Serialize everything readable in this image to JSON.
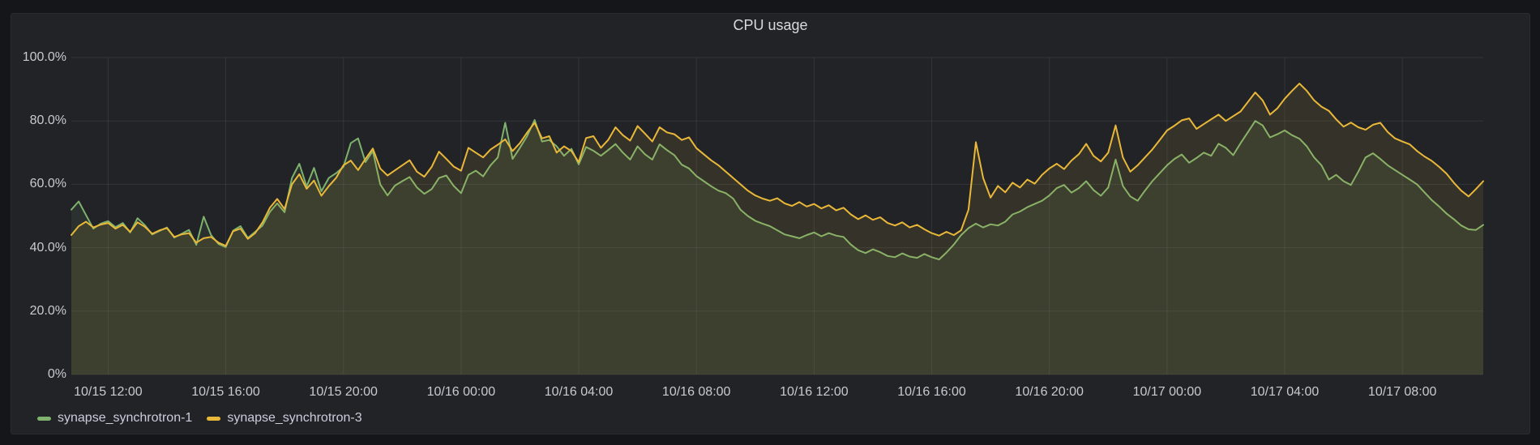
{
  "panel": {
    "title": "CPU usage"
  },
  "colors": {
    "series_green": "#7EB26D",
    "series_yellow": "#EAB839",
    "grid": "rgba(204,204,220,0.10)",
    "tick_text": "#C9CAD1",
    "title_text": "#D8D9DA"
  },
  "chart_data": {
    "type": "area",
    "title": "CPU usage",
    "unit": "percent",
    "grid": true,
    "legend_position": "bottom-left",
    "ylim": [
      0,
      100
    ],
    "total_hours": 48,
    "x_start_label": "10/15 10:45",
    "sample_interval_minutes": 15,
    "y_ticks": [
      {
        "value": 100,
        "label": "100.0%"
      },
      {
        "value": 80,
        "label": "80.0%"
      },
      {
        "value": 60,
        "label": "60.0%"
      },
      {
        "value": 40,
        "label": "40.0%"
      },
      {
        "value": 20,
        "label": "20.0%"
      },
      {
        "value": 0,
        "label": "0%"
      }
    ],
    "x_ticks": [
      {
        "label": "10/15 12:00",
        "t": 1.25
      },
      {
        "label": "10/15 16:00",
        "t": 5.25
      },
      {
        "label": "10/15 20:00",
        "t": 9.25
      },
      {
        "label": "10/16 00:00",
        "t": 13.25
      },
      {
        "label": "10/16 04:00",
        "t": 17.25
      },
      {
        "label": "10/16 08:00",
        "t": 21.25
      },
      {
        "label": "10/16 12:00",
        "t": 25.25
      },
      {
        "label": "10/16 16:00",
        "t": 29.25
      },
      {
        "label": "10/16 20:00",
        "t": 33.25
      },
      {
        "label": "10/17 00:00",
        "t": 37.25
      },
      {
        "label": "10/17 04:00",
        "t": 41.25
      },
      {
        "label": "10/17 08:00",
        "t": 45.25
      }
    ],
    "series": [
      {
        "name": "synapse_synchrotron-1",
        "color": "#7EB26D",
        "fill_opacity": 0.1,
        "line_width": 2,
        "values": [
          52.0,
          54.6,
          50.3,
          46.0,
          47.6,
          48.4,
          46.5,
          47.8,
          44.8,
          49.3,
          47.1,
          44.2,
          45.3,
          46.4,
          43.2,
          44.4,
          45.6,
          40.9,
          49.8,
          44.0,
          41.2,
          40.2,
          45.4,
          46.8,
          43.1,
          45.0,
          47.0,
          51.3,
          54.0,
          51.2,
          62.0,
          66.5,
          59.3,
          65.2,
          57.8,
          62.0,
          63.5,
          65.5,
          73.0,
          74.5,
          67.0,
          70.5,
          60.0,
          56.5,
          59.6,
          61.0,
          62.3,
          59.0,
          57.0,
          58.5,
          62.0,
          62.8,
          59.5,
          57.2,
          63.0,
          64.3,
          62.5,
          66.0,
          68.5,
          79.4,
          68.0,
          71.5,
          75.3,
          80.3,
          73.5,
          74.0,
          72.0,
          69.0,
          71.2,
          66.3,
          71.8,
          70.6,
          69.0,
          70.8,
          72.7,
          70.0,
          67.8,
          72.0,
          69.5,
          67.8,
          72.6,
          70.8,
          69.2,
          66.2,
          65.0,
          62.6,
          61.0,
          59.4,
          58.0,
          57.2,
          55.5,
          52.0,
          50.0,
          48.5,
          47.6,
          46.8,
          45.5,
          44.2,
          43.6,
          43.0,
          44.0,
          44.8,
          43.6,
          44.6,
          43.8,
          43.4,
          41.0,
          39.2,
          38.3,
          39.5,
          38.6,
          37.4,
          37.0,
          38.2,
          37.2,
          36.8,
          38.0,
          37.0,
          36.3,
          38.5,
          41.0,
          44.0,
          46.2,
          47.6,
          46.4,
          47.4,
          47.0,
          48.2,
          50.5,
          51.4,
          52.8,
          53.8,
          54.8,
          56.5,
          58.8,
          59.8,
          57.4,
          58.8,
          61.0,
          58.2,
          56.4,
          59.0,
          67.8,
          59.5,
          56.2,
          54.8,
          58.0,
          61.0,
          63.5,
          66.0,
          68.0,
          69.4,
          66.8,
          68.3,
          70.0,
          69.0,
          72.8,
          71.5,
          69.2,
          73.0,
          76.5,
          80.0,
          78.6,
          74.8,
          75.8,
          77.0,
          75.5,
          74.4,
          72.0,
          68.5,
          66.0,
          61.5,
          63.0,
          61.0,
          59.8,
          64.0,
          68.5,
          69.8,
          68.0,
          66.0,
          64.5,
          63.0,
          61.5,
          60.0,
          57.5,
          55.0,
          53.0,
          50.8,
          49.0,
          47.0,
          45.8,
          45.6,
          47.2
        ]
      },
      {
        "name": "synapse_synchrotron-3",
        "color": "#EAB839",
        "fill_opacity": 0.1,
        "line_width": 2,
        "values": [
          44.0,
          46.8,
          48.2,
          46.4,
          47.3,
          47.8,
          46.0,
          47.2,
          45.0,
          48.0,
          46.6,
          44.4,
          45.5,
          46.2,
          43.4,
          44.2,
          44.6,
          41.6,
          43.0,
          43.4,
          41.6,
          40.6,
          45.2,
          46.0,
          42.8,
          44.6,
          48.0,
          52.6,
          55.4,
          52.2,
          60.0,
          63.2,
          58.6,
          61.2,
          56.4,
          59.4,
          62.0,
          66.0,
          67.5,
          64.5,
          68.0,
          71.3,
          65.0,
          62.8,
          64.4,
          66.0,
          67.6,
          64.0,
          62.4,
          65.5,
          70.3,
          68.0,
          65.6,
          64.3,
          71.5,
          70.0,
          68.5,
          71.0,
          72.5,
          74.2,
          70.5,
          73.0,
          76.4,
          79.4,
          74.5,
          75.2,
          70.0,
          72.0,
          70.5,
          67.0,
          74.6,
          75.2,
          71.5,
          74.0,
          78.0,
          75.5,
          73.8,
          78.4,
          76.0,
          73.5,
          78.0,
          76.4,
          75.8,
          74.0,
          74.8,
          71.4,
          69.5,
          67.6,
          66.0,
          64.0,
          62.0,
          60.0,
          58.0,
          56.5,
          55.5,
          54.8,
          55.6,
          54.0,
          53.2,
          54.4,
          53.0,
          53.8,
          52.4,
          53.4,
          51.8,
          52.6,
          50.5,
          49.0,
          50.2,
          48.8,
          49.6,
          47.8,
          47.0,
          48.0,
          46.4,
          47.2,
          45.8,
          44.6,
          43.8,
          45.0,
          44.0,
          45.5,
          52.0,
          73.3,
          62.0,
          55.8,
          59.5,
          57.5,
          60.5,
          59.0,
          61.5,
          60.2,
          63.0,
          65.0,
          66.5,
          64.8,
          67.5,
          69.5,
          72.8,
          69.0,
          67.2,
          70.0,
          78.6,
          68.5,
          64.0,
          66.0,
          68.5,
          71.0,
          74.0,
          77.0,
          78.5,
          80.2,
          80.8,
          77.5,
          79.0,
          80.5,
          82.0,
          80.0,
          81.5,
          83.0,
          86.0,
          89.0,
          86.5,
          82.0,
          84.0,
          87.0,
          89.5,
          91.8,
          89.5,
          86.5,
          84.5,
          83.2,
          80.5,
          78.2,
          79.5,
          78.0,
          77.2,
          78.8,
          79.4,
          76.5,
          74.5,
          73.5,
          72.6,
          70.5,
          68.8,
          67.4,
          65.5,
          63.4,
          60.5,
          58.0,
          56.2,
          58.5,
          61.0
        ]
      }
    ]
  }
}
